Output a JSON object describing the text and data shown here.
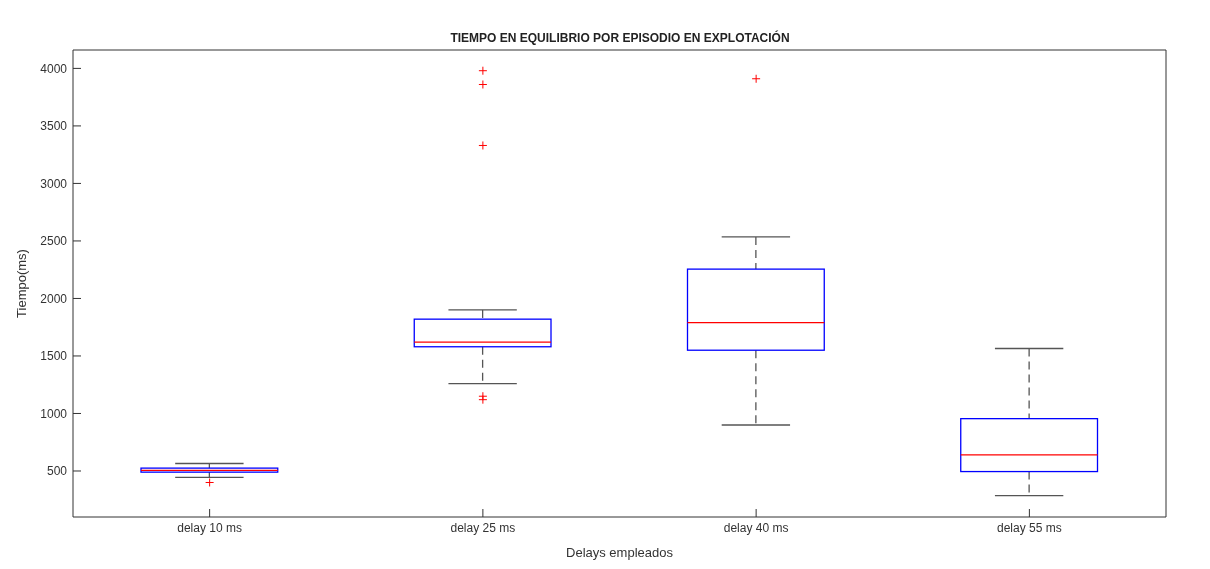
{
  "chart_data": {
    "type": "box",
    "title": "TIEMPO EN EQUILIBRIO POR EPISODIO EN EXPLOTACIÓN",
    "xlabel": "Delays empleados",
    "ylabel": "Tiempo(ms)",
    "categories": [
      "delay 10 ms",
      "delay 25 ms",
      "delay 40 ms",
      "delay 55 ms"
    ],
    "color": "#0000ff",
    "boxes": [
      {
        "low": 445,
        "q1": 490,
        "median": 505,
        "q3": 525,
        "high": 565,
        "outliers": [
          400
        ]
      },
      {
        "low": 1260,
        "q1": 1580,
        "median": 1620,
        "q3": 1820,
        "high": 1900,
        "outliers": [
          1120,
          1150,
          3330,
          3860,
          3980
        ]
      },
      {
        "low": 900,
        "q1": 1550,
        "median": 1790,
        "q3": 2255,
        "high": 2535,
        "outliers": [
          3910
        ]
      },
      {
        "low": 285,
        "q1": 495,
        "median": 640,
        "q3": 955,
        "high": 1565
      }
    ],
    "ylim": [
      100,
      4160
    ],
    "yticks": [
      500,
      1000,
      1500,
      2000,
      2500,
      3000,
      3500,
      4000
    ],
    "grid": false
  }
}
